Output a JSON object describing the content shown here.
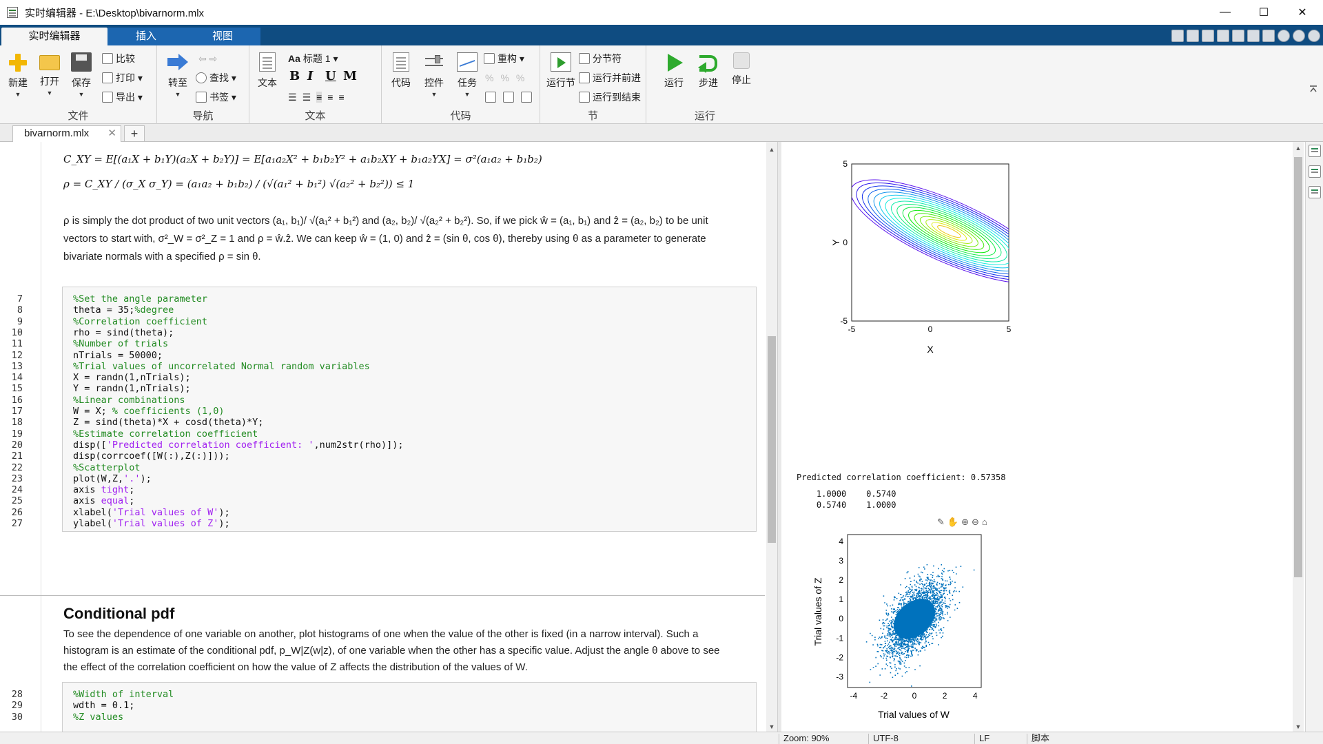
{
  "window": {
    "title": "实时编辑器 - E:\\Desktop\\bivarnorm.mlx",
    "min": "—",
    "max": "☐",
    "close": "✕"
  },
  "ribbon": {
    "tabs": [
      "实时编辑器",
      "插入",
      "视图"
    ],
    "groups": {
      "file": {
        "label": "文件",
        "new": "新建",
        "open": "打开",
        "save": "保存",
        "compare": "比较",
        "print": "打印",
        "export": "导出"
      },
      "nav": {
        "label": "导航",
        "goto": "转至",
        "find": "查找",
        "bookmark": "书签"
      },
      "text": {
        "label": "文本",
        "text_btn": "文本",
        "style": "标题 1",
        "bold": "B",
        "italic": "I",
        "underline": "U",
        "mono": "M"
      },
      "code": {
        "label": "代码",
        "code_btn": "代码",
        "control": "控件",
        "task": "任务",
        "refactor": "重构"
      },
      "section": {
        "label": "节",
        "run_section": "运行节",
        "section_break": "分节符",
        "run_advance": "运行并前进",
        "run_to_end": "运行到结束"
      },
      "run": {
        "label": "运行",
        "run": "运行",
        "step": "步进",
        "stop": "停止"
      }
    }
  },
  "file_tab": {
    "name": "bivarnorm.mlx",
    "close": "✕",
    "add": "+"
  },
  "editor": {
    "math": {
      "cxy": "C_XY = E[(a₁X + b₁Y)(a₂X + b₂Y)] = E[a₁a₂X² + b₁b₂Y² + a₁b₂XY + b₁a₂YX] = σ²(a₁a₂ + b₁b₂)",
      "rho": "ρ = C_XY / (σ_X σ_Y) = (a₁a₂ + b₁b₂) / (√(a₁² + b₁²) √(a₂² + b₂²)) ≤ 1"
    },
    "para1": [
      "ρ is simply the dot product of two unit vectors (a₁, b₁)/ √(a₁² + b₁²) and (a₂, b₂)/ √(a₂² + b₂²). So, if we pick ŵ = (a₁, b₁) and ẑ = (a₂, b₂) to be unit",
      "vectors to start with, σ²_W = σ²_Z = 1 and ρ = ŵ.ẑ. We can keep ŵ = (1, 0) and ẑ = (sin θ, cos θ), thereby using θ as a parameter to generate",
      "bivariate normals with a specified ρ = sin θ."
    ],
    "code1": {
      "start": 7,
      "lines": [
        {
          "parts": [
            {
              "t": "%Set the angle parameter",
              "c": "com"
            }
          ]
        },
        {
          "parts": [
            {
              "t": "theta = 35;",
              "c": ""
            },
            {
              "t": "%degree",
              "c": "com"
            }
          ]
        },
        {
          "parts": [
            {
              "t": "%Correlation coefficient",
              "c": "com"
            }
          ]
        },
        {
          "parts": [
            {
              "t": "rho = sind(theta);",
              "c": ""
            }
          ]
        },
        {
          "parts": [
            {
              "t": "%Number of trials",
              "c": "com"
            }
          ]
        },
        {
          "parts": [
            {
              "t": "nTrials = 50000;",
              "c": ""
            }
          ]
        },
        {
          "parts": [
            {
              "t": "%Trial values of uncorrelated Normal random variables",
              "c": "com"
            }
          ]
        },
        {
          "parts": [
            {
              "t": "X = randn(1,nTrials);",
              "c": ""
            }
          ]
        },
        {
          "parts": [
            {
              "t": "Y = randn(1,nTrials);",
              "c": ""
            }
          ]
        },
        {
          "parts": [
            {
              "t": "%Linear combinations",
              "c": "com"
            }
          ]
        },
        {
          "parts": [
            {
              "t": "W = X; ",
              "c": ""
            },
            {
              "t": "% coefficients (1,0)",
              "c": "com"
            }
          ]
        },
        {
          "parts": [
            {
              "t": "Z = sind(theta)*X + cosd(theta)*Y;",
              "c": ""
            }
          ]
        },
        {
          "parts": [
            {
              "t": "%Estimate correlation coefficient",
              "c": "com"
            }
          ]
        },
        {
          "parts": [
            {
              "t": "disp([",
              "c": ""
            },
            {
              "t": "'Predicted correlation coefficient: '",
              "c": "str"
            },
            {
              "t": ",num2str(rho)]);",
              "c": ""
            }
          ]
        },
        {
          "parts": [
            {
              "t": "disp(corrcoef([W(:),Z(:)]));",
              "c": ""
            }
          ]
        },
        {
          "parts": [
            {
              "t": "%Scatterplot",
              "c": "com"
            }
          ]
        },
        {
          "parts": [
            {
              "t": "plot(W,Z,",
              "c": ""
            },
            {
              "t": "'.'",
              "c": "str"
            },
            {
              "t": ");",
              "c": ""
            }
          ]
        },
        {
          "parts": [
            {
              "t": "axis ",
              "c": ""
            },
            {
              "t": "tight",
              "c": "str"
            },
            {
              "t": ";",
              "c": ""
            }
          ]
        },
        {
          "parts": [
            {
              "t": "axis ",
              "c": ""
            },
            {
              "t": "equal",
              "c": "str"
            },
            {
              "t": ";",
              "c": ""
            }
          ]
        },
        {
          "parts": [
            {
              "t": "xlabel(",
              "c": ""
            },
            {
              "t": "'Trial values of W'",
              "c": "str"
            },
            {
              "t": ");",
              "c": ""
            }
          ]
        },
        {
          "parts": [
            {
              "t": "ylabel(",
              "c": ""
            },
            {
              "t": "'Trial values of Z'",
              "c": "str"
            },
            {
              "t": ");",
              "c": ""
            }
          ]
        }
      ]
    },
    "heading": "Conditional pdf",
    "para2": [
      "To see the dependence of one variable on another, plot histograms of one when the value of the other is fixed (in a narrow interval). Such a",
      "histogram is an estimate of the conditional pdf, p_W|Z(w|z), of one variable when the other has a specific value. Adjust the angle θ above to see",
      "the effect of the correlation coefficient on how the value of Z affects the distribution of the values of W."
    ],
    "code2": {
      "start": 28,
      "lines": [
        {
          "parts": [
            {
              "t": "%Width of interval",
              "c": "com"
            }
          ]
        },
        {
          "parts": [
            {
              "t": "wdth = 0.1;",
              "c": ""
            }
          ]
        },
        {
          "parts": [
            {
              "t": "%Z values",
              "c": "com"
            }
          ]
        }
      ]
    }
  },
  "output": {
    "contour": {
      "type": "contour",
      "xlabel": "X",
      "ylabel": "Y",
      "xlim": [
        -5,
        5
      ],
      "ylim": [
        -5,
        5
      ],
      "xticks": [
        "-5",
        "0",
        "5"
      ],
      "yticks": [
        "5",
        "0",
        "-5"
      ]
    },
    "console": {
      "predicted": "Predicted correlation coefficient: 0.57358",
      "row1": "    1.0000    0.5740",
      "row2": "    0.5740    1.0000"
    },
    "scatter": {
      "type": "scatter",
      "xlabel": "Trial values of W",
      "ylabel": "Trial values of Z",
      "xticks": [
        "-4",
        "-2",
        "0",
        "2",
        "4"
      ],
      "yticks": [
        "4",
        "3",
        "2",
        "1",
        "0",
        "-1",
        "-2",
        "-3"
      ],
      "correlation": 0.574,
      "color": "#0072bd"
    }
  },
  "status": {
    "zoom": "Zoom: 90%",
    "encoding": "UTF-8",
    "eol": "LF",
    "type": "脚本"
  }
}
